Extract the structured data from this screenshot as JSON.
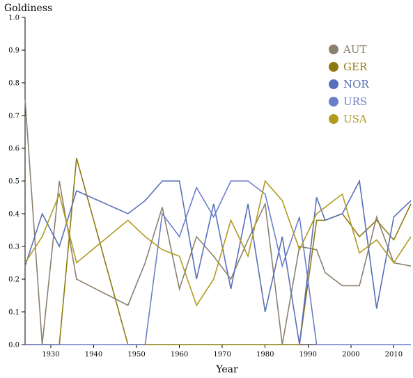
{
  "chart_data": {
    "type": "line",
    "title": "",
    "xlabel": "Year",
    "ylabel": "Goldiness",
    "xlim": [
      1924,
      2014
    ],
    "ylim": [
      0,
      1
    ],
    "x_ticks": [
      1930,
      1940,
      1950,
      1960,
      1970,
      1980,
      1990,
      2000,
      2010
    ],
    "y_ticks": [
      "0.0",
      "0.1",
      "0.2",
      "0.3",
      "0.4",
      "0.5",
      "0.6",
      "0.7",
      "0.8",
      "0.9",
      "1.0"
    ],
    "legend_position": "top-right",
    "series": [
      {
        "name": "AUT",
        "color": "#8c8070",
        "points": [
          [
            1924,
            0.75
          ],
          [
            1928,
            0.0
          ],
          [
            1932,
            0.5
          ],
          [
            1936,
            0.2
          ],
          [
            1948,
            0.12
          ],
          [
            1952,
            0.25
          ],
          [
            1956,
            0.42
          ],
          [
            1960,
            0.17
          ],
          [
            1964,
            0.33
          ],
          [
            1968,
            0.27
          ],
          [
            1972,
            0.2
          ],
          [
            1976,
            0.32
          ],
          [
            1980,
            0.43
          ],
          [
            1984,
            0.0
          ],
          [
            1988,
            0.3
          ],
          [
            1992,
            0.29
          ],
          [
            1994,
            0.22
          ],
          [
            1998,
            0.18
          ],
          [
            2002,
            0.18
          ],
          [
            2006,
            0.39
          ],
          [
            2010,
            0.25
          ],
          [
            2014,
            0.24
          ]
        ]
      },
      {
        "name": "GER",
        "color": "#8c7a10",
        "points": [
          [
            1924,
            0.0
          ],
          [
            1928,
            0.0
          ],
          [
            1932,
            0.0
          ],
          [
            1936,
            0.57
          ],
          [
            1948,
            0.0
          ],
          [
            1952,
            0.0
          ],
          [
            1956,
            0.0
          ],
          [
            1960,
            0.0
          ],
          [
            1964,
            0.0
          ],
          [
            1968,
            0.0
          ],
          [
            1972,
            0.0
          ],
          [
            1976,
            0.0
          ],
          [
            1980,
            0.0
          ],
          [
            1984,
            0.0
          ],
          [
            1988,
            0.0
          ],
          [
            1992,
            0.38
          ],
          [
            1994,
            0.38
          ],
          [
            1998,
            0.4
          ],
          [
            2002,
            0.33
          ],
          [
            2006,
            0.38
          ],
          [
            2010,
            0.32
          ],
          [
            2014,
            0.43
          ]
        ]
      },
      {
        "name": "NOR",
        "color": "#5870b8",
        "points": [
          [
            1924,
            0.24
          ],
          [
            1928,
            0.4
          ],
          [
            1932,
            0.3
          ],
          [
            1936,
            0.47
          ],
          [
            1948,
            0.4
          ],
          [
            1952,
            0.44
          ],
          [
            1956,
            0.5
          ],
          [
            1960,
            0.5
          ],
          [
            1964,
            0.2
          ],
          [
            1968,
            0.43
          ],
          [
            1972,
            0.17
          ],
          [
            1976,
            0.43
          ],
          [
            1980,
            0.1
          ],
          [
            1984,
            0.33
          ],
          [
            1988,
            0.0
          ],
          [
            1992,
            0.45
          ],
          [
            1994,
            0.38
          ],
          [
            1998,
            0.4
          ],
          [
            2002,
            0.5
          ],
          [
            2006,
            0.11
          ],
          [
            2010,
            0.39
          ],
          [
            2014,
            0.44
          ]
        ]
      },
      {
        "name": "URS",
        "color": "#6a7fc8",
        "points": [
          [
            1924,
            0.0
          ],
          [
            1928,
            0.0
          ],
          [
            1932,
            0.0
          ],
          [
            1936,
            0.0
          ],
          [
            1948,
            0.0
          ],
          [
            1952,
            0.0
          ],
          [
            1956,
            0.4
          ],
          [
            1960,
            0.33
          ],
          [
            1964,
            0.48
          ],
          [
            1968,
            0.39
          ],
          [
            1972,
            0.5
          ],
          [
            1976,
            0.5
          ],
          [
            1980,
            0.46
          ],
          [
            1984,
            0.24
          ],
          [
            1988,
            0.39
          ],
          [
            1992,
            0.0
          ],
          [
            1994,
            0.0
          ],
          [
            1998,
            0.0
          ],
          [
            2002,
            0.0
          ],
          [
            2006,
            0.0
          ],
          [
            2010,
            0.0
          ],
          [
            2014,
            0.0
          ]
        ]
      },
      {
        "name": "USA",
        "color": "#b09a20",
        "points": [
          [
            1924,
            0.25
          ],
          [
            1928,
            0.33
          ],
          [
            1932,
            0.46
          ],
          [
            1936,
            0.25
          ],
          [
            1948,
            0.38
          ],
          [
            1952,
            0.33
          ],
          [
            1956,
            0.29
          ],
          [
            1960,
            0.27
          ],
          [
            1964,
            0.12
          ],
          [
            1968,
            0.2
          ],
          [
            1972,
            0.38
          ],
          [
            1976,
            0.27
          ],
          [
            1980,
            0.5
          ],
          [
            1984,
            0.44
          ],
          [
            1988,
            0.29
          ],
          [
            1992,
            0.4
          ],
          [
            1994,
            0.42
          ],
          [
            1998,
            0.46
          ],
          [
            2002,
            0.28
          ],
          [
            2006,
            0.32
          ],
          [
            2010,
            0.25
          ],
          [
            2014,
            0.33
          ]
        ]
      }
    ]
  }
}
